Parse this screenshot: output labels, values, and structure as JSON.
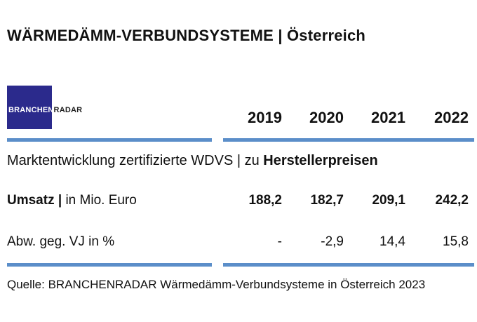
{
  "title": "WÄRMEDÄMM-VERBUNDSYSTEME | Österreich",
  "logo": {
    "name": "BRANCHENRADAR",
    "part_light": "BRANCHEN",
    "part_dark": "RADAR",
    "background_color": "#2b2a8c"
  },
  "accent_color": "#5b8ec9",
  "years": [
    "2019",
    "2020",
    "2021",
    "2022"
  ],
  "subtitle": {
    "prefix": "Marktentwicklung zertifizierte WDVS | zu ",
    "emphasis": "Herstellerpreisen"
  },
  "rows": [
    {
      "label_bold": "Umsatz |",
      "label_regular": " in Mio. Euro",
      "values": [
        "188,2",
        "182,7",
        "209,1",
        "242,2"
      ]
    },
    {
      "label_bold": "",
      "label_regular": "Abw. geg. VJ in %",
      "values": [
        "-",
        "-2,9",
        "14,4",
        "15,8"
      ]
    }
  ],
  "source": "Quelle: BRANCHENRADAR Wärmedämm-Verbundsysteme in Österreich 2023"
}
